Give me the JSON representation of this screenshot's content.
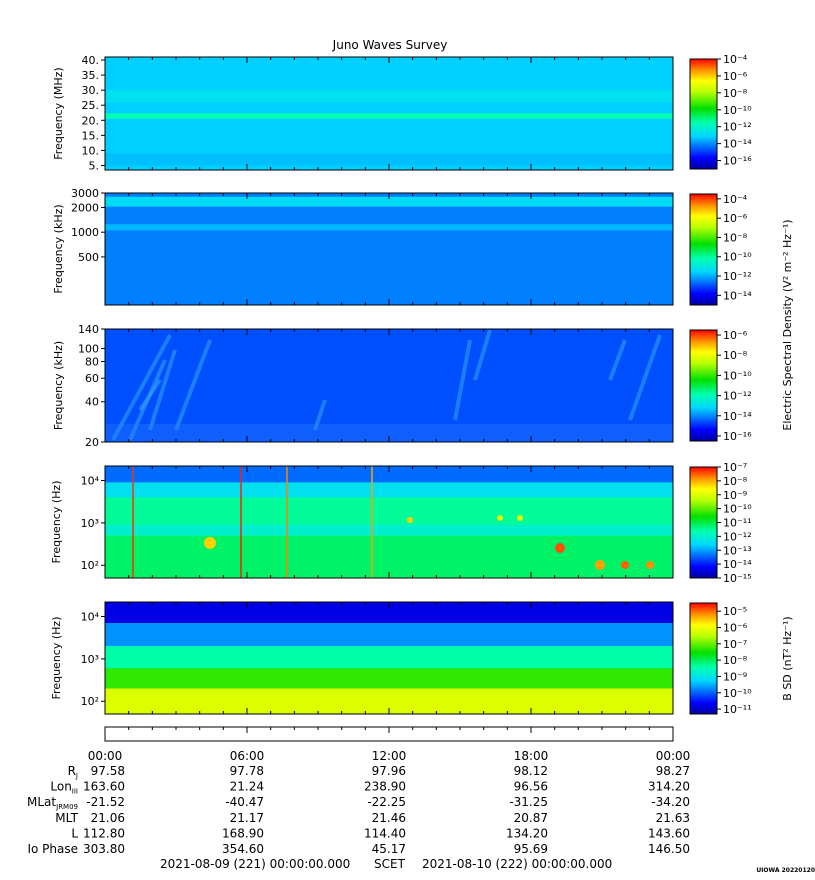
{
  "title": "Juno Waves Survey",
  "footer_start": "2021-08-09 (221) 00:00:00.000",
  "footer_mid": "SCET",
  "footer_end": "2021-08-10 (222) 00:00:00.000",
  "credit": "UIOWA 20220120",
  "shared_colorbar_label": "Electric Spectral Density (V² m⁻² Hz⁻¹)",
  "time_ticks": [
    "00:00",
    "06:00",
    "12:00",
    "18:00",
    "00:00"
  ],
  "ephemeris": {
    "labels": [
      {
        "main": "R",
        "sub": "J"
      },
      {
        "main": "Lon",
        "sub": "III"
      },
      {
        "main": "MLat",
        "sub": "JRM09"
      },
      {
        "main": "MLT",
        "sub": ""
      },
      {
        "main": "L",
        "sub": ""
      },
      {
        "main": "Io Phase",
        "sub": ""
      }
    ],
    "rows": [
      [
        "97.58",
        "97.78",
        "97.96",
        "98.12",
        "98.27"
      ],
      [
        "163.60",
        "21.24",
        "238.90",
        "96.56",
        "314.20"
      ],
      [
        "-21.52",
        "-40.47",
        "-22.25",
        "-31.25",
        "-34.20"
      ],
      [
        "21.06",
        "21.17",
        "21.46",
        "20.87",
        "21.63"
      ],
      [
        "112.80",
        "168.90",
        "114.40",
        "134.20",
        "143.60"
      ],
      [
        "303.80",
        "354.60",
        "45.17",
        "95.69",
        "146.50"
      ]
    ]
  },
  "chart_data": [
    {
      "type": "heatmap",
      "ylabel": "Frequency (MHz)",
      "yscale": "linear",
      "ylim": [
        3.5,
        41
      ],
      "yticks": [
        "5.",
        "10.",
        "15.",
        "20.",
        "25.",
        "30.",
        "35.",
        "40."
      ],
      "colorbar_ticks": [
        "10⁻⁴",
        "10⁻⁶",
        "10⁻⁸",
        "10⁻¹⁰",
        "10⁻¹²",
        "10⁻¹⁴",
        "10⁻¹⁶"
      ],
      "colorbar_range": [
        -17,
        -4
      ],
      "background_log": -13.2,
      "bands": [
        {
          "from": 5.0,
          "to": 9.0,
          "log": -13.4
        },
        {
          "from": 20.5,
          "to": 22.3,
          "log": -11.6
        },
        {
          "from": 26.0,
          "to": 30.0,
          "log": -12.8
        }
      ]
    },
    {
      "type": "heatmap",
      "ylabel": "Frequency (kHz)",
      "yscale": "log",
      "ylim": [
        130,
        3000
      ],
      "yticks": [
        "3000",
        "2000",
        "1000",
        "500"
      ],
      "colorbar_ticks": [
        "10⁻⁴",
        "10⁻⁶",
        "10⁻⁸",
        "10⁻¹⁰",
        "10⁻¹²",
        "10⁻¹⁴"
      ],
      "colorbar_range": [
        -15,
        -3.5
      ],
      "background_log": -12.5,
      "bands": [
        {
          "from": 2050,
          "to": 2700,
          "log": -11.4
        },
        {
          "from": 1050,
          "to": 1250,
          "log": -11.9
        }
      ]
    },
    {
      "type": "heatmap",
      "ylabel": "Frequency (kHz)",
      "yscale": "log",
      "ylim": [
        20,
        140
      ],
      "yticks": [
        "140",
        "100",
        "80",
        "60",
        "40",
        "20"
      ],
      "colorbar_ticks": [
        "10⁻⁶",
        "10⁻⁸",
        "10⁻¹⁰",
        "10⁻¹²",
        "10⁻¹⁴",
        "10⁻¹⁶"
      ],
      "colorbar_range": [
        -16.5,
        -5.5
      ],
      "background_log": -14.6,
      "bands": []
    },
    {
      "type": "heatmap",
      "ylabel": "Frequency (Hz)",
      "yscale": "log",
      "ylim": [
        50,
        22000
      ],
      "yticks": [
        "10⁴",
        "10³",
        "10²"
      ],
      "colorbar_ticks": [
        "10⁻⁷",
        "10⁻⁸",
        "10⁻⁹",
        "10⁻¹⁰",
        "10⁻¹¹",
        "10⁻¹²",
        "10⁻¹³",
        "10⁻¹⁴",
        "10⁻¹⁵"
      ],
      "colorbar_range": [
        -15,
        -7
      ],
      "background_log": -11.5,
      "bands": [
        {
          "from": 9000,
          "to": 22000,
          "log": -13.4
        },
        {
          "from": 4000,
          "to": 9000,
          "log": -12.4
        },
        {
          "from": 500,
          "to": 900,
          "log": -12.0
        },
        {
          "from": 50,
          "to": 500,
          "log": -11.2
        }
      ]
    },
    {
      "type": "heatmap",
      "ylabel": "Frequency (Hz)",
      "yscale": "log",
      "ylim": [
        50,
        22000
      ],
      "yticks": [
        "10⁴",
        "10³",
        "10²"
      ],
      "colorbar_label": "B SD (nT² Hz⁻¹)",
      "colorbar_ticks": [
        "10⁻⁵",
        "10⁻⁶",
        "10⁻⁷",
        "10⁻⁸",
        "10⁻⁹",
        "10⁻¹⁰",
        "10⁻¹¹"
      ],
      "colorbar_range": [
        -11.3,
        -4.5
      ],
      "background_log": -9.0,
      "bands": [
        {
          "from": 7000,
          "to": 22000,
          "log": -10.8
        },
        {
          "from": 2000,
          "to": 7000,
          "log": -9.7
        },
        {
          "from": 600,
          "to": 2000,
          "log": -8.4
        },
        {
          "from": 200,
          "to": 600,
          "log": -7.3
        },
        {
          "from": 50,
          "to": 200,
          "log": -6.2
        }
      ]
    }
  ]
}
